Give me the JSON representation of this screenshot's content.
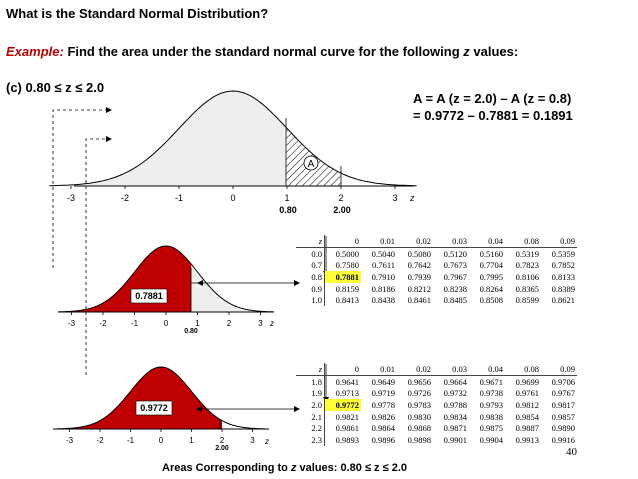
{
  "title": "What is the Standard Normal Distribution?",
  "example": {
    "label": "Example:",
    "text": "Find the area under the standard normal curve for the following ",
    "z": "z",
    "suffix": " values:"
  },
  "part": "(c) 0.80 ≤ z ≤ 2.0",
  "formula": {
    "line1": "A = A (z = 2.0) – A (z =  0.8)",
    "line2": "= 0.9772 – 0.7881 = 0.1891"
  },
  "top_curve": {
    "ticks": [
      "-3",
      "-2",
      "-1",
      "0",
      "1",
      "2",
      "3"
    ],
    "axis_label": "z",
    "region_label": "A",
    "bounds": [
      "0.80",
      "2.00"
    ]
  },
  "mid_curve": {
    "ticks": [
      "-3",
      "-2",
      "-1",
      "0",
      "1",
      "2",
      "3"
    ],
    "axis_label": "z",
    "area": "0.7881",
    "bound": "0.80"
  },
  "bottom_curve": {
    "ticks": [
      "-3",
      "-2",
      "-1",
      "0",
      "1",
      "2",
      "3"
    ],
    "axis_label": "z",
    "area": "0.9772",
    "bound": "2.00"
  },
  "table1": {
    "header": [
      "z",
      "0",
      "0.01",
      "0.02",
      "0.03",
      "0.04",
      "0.08",
      "0.09"
    ],
    "rows": [
      [
        "0.0",
        "0.5000",
        "0.5040",
        "0.5080",
        "0.5120",
        "0.5160",
        "0.5319",
        "0.5359"
      ],
      [
        "0.7",
        "0.7580",
        "0.7611",
        "0.7642",
        "0.7673",
        "0.7704",
        "0.7823",
        "0.7852"
      ],
      [
        "0.8",
        "0.7881",
        "0.7910",
        "0.7939",
        "0.7967",
        "0.7995",
        "0.8106",
        "0.8133"
      ],
      [
        "0.9",
        "0.8159",
        "0.8186",
        "0.8212",
        "0.8238",
        "0.8264",
        "0.8365",
        "0.8389"
      ],
      [
        "1.0",
        "0.8413",
        "0.8438",
        "0.8461",
        "0.8485",
        "0.8508",
        "0.8599",
        "0.8621"
      ]
    ],
    "highlight": "0.7881"
  },
  "table2": {
    "header": [
      "z",
      "0",
      "0.01",
      "0.02",
      "0.03",
      "0.04",
      "0.08",
      "0.09"
    ],
    "rows": [
      [
        "1.8",
        "0.9641",
        "0.9649",
        "0.9656",
        "0.9664",
        "0.9671",
        "0.9699",
        "0.9706"
      ],
      [
        "1.9",
        "0.9713",
        "0.9719",
        "0.9726",
        "0.9732",
        "0.9738",
        "0.9761",
        "0.9767"
      ],
      [
        "2.0",
        "0.9772",
        "0.9778",
        "0.9783",
        "0.9788",
        "0.9793",
        "0.9812",
        "0.9817"
      ],
      [
        "2.1",
        "0.9821",
        "0.9826",
        "0.9830",
        "0.9834",
        "0.9838",
        "0.9854",
        "0.9857"
      ],
      [
        "2.2",
        "0.9861",
        "0.9864",
        "0.9868",
        "0.9871",
        "0.9875",
        "0.9887",
        "0.9890"
      ],
      [
        "2.3",
        "0.9893",
        "0.9896",
        "0.9898",
        "0.9901",
        "0.9904",
        "0.9913",
        "0.9916"
      ]
    ],
    "highlight": "0.9772"
  },
  "footer": {
    "text": "Areas Corresponding to ",
    "z": "z",
    "rest": " values: 0.80 ≤ z ≤ 2.0"
  },
  "page_number": "40",
  "colors": {
    "accent": "#c00000",
    "highlight": "#ffff33",
    "shade": "#eeeeee"
  }
}
